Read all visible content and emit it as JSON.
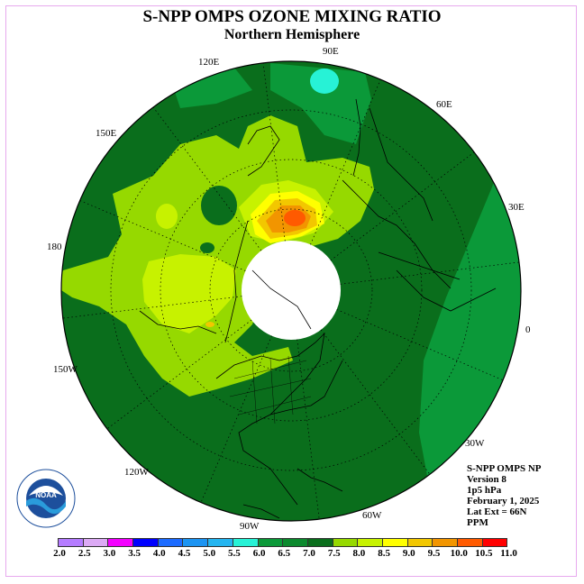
{
  "title": "S-NPP OMPS OZONE MIXING RATIO",
  "subtitle": "Northern Hemisphere",
  "lon_labels": [
    "90E",
    "60E",
    "30E",
    "0",
    "30W",
    "60W",
    "90W",
    "120W",
    "150W",
    "180",
    "150E",
    "120E"
  ],
  "info": [
    "S-NPP OMPS NP",
    "Version 8",
    "1p5 hPa",
    "February 1, 2025",
    "Lat Ext = 66N",
    "PPM"
  ],
  "colorbar": {
    "ticks": [
      "2.0",
      "2.5",
      "3.0",
      "3.5",
      "4.0",
      "4.5",
      "5.0",
      "5.5",
      "6.0",
      "6.5",
      "7.0",
      "7.5",
      "8.0",
      "8.5",
      "9.0",
      "9.5",
      "10.0",
      "10.5",
      "11.0"
    ],
    "colors": [
      "#b57cff",
      "#dcaaf5",
      "#f300ff",
      "#0000ff",
      "#1c6bff",
      "#1c94f2",
      "#24b5f0",
      "#27f2d6",
      "#0b9939",
      "#0c8a2e",
      "#0a6e1c",
      "#96d900",
      "#c7f200",
      "#ffff00",
      "#f2c700",
      "#f29500",
      "#ff5a00",
      "#ff0000",
      "#a0522d"
    ]
  },
  "map": {
    "pole_hole_color": "#ffffff",
    "ocean_base": "#0a6e1c",
    "max_region_value_ppm": 10.0
  }
}
